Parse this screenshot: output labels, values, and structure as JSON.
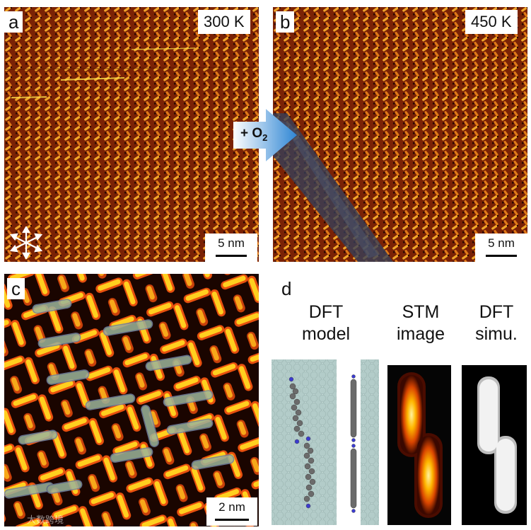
{
  "panels": {
    "a": {
      "letter": "a",
      "temperature": "300 K",
      "scale": "5 nm"
    },
    "b": {
      "letter": "b",
      "temperature": "450 K",
      "scale": "5 nm"
    },
    "c": {
      "letter": "c",
      "scale": "2 nm"
    },
    "d": {
      "letter": "d"
    }
  },
  "arrow": {
    "label": "+ O",
    "subscript": "2"
  },
  "column_headers": {
    "dft_model": [
      "DFT",
      "model"
    ],
    "stm_image": [
      "STM",
      "image"
    ],
    "dft_simu": [
      "DFT",
      "simu."
    ]
  },
  "watermark": "大数跨境",
  "colors": {
    "lattice_dark": "#2a0800",
    "lattice_bright": "#f5a623",
    "lattice_orange": "#d9541a",
    "oxide_stripe": "#35405a",
    "arrow_blue": "#3a8fd6"
  }
}
